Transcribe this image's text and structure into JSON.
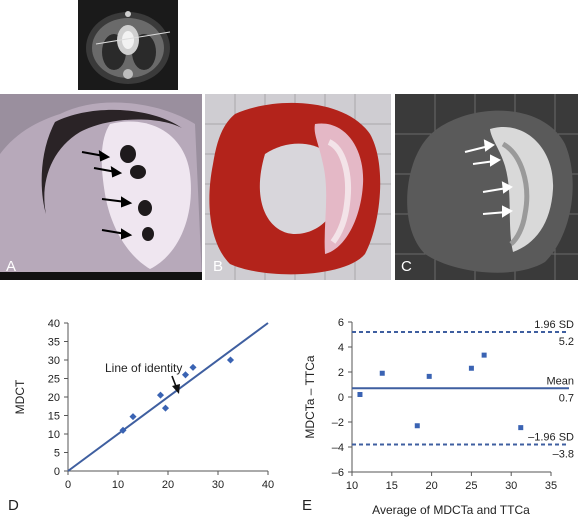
{
  "panels": {
    "A": "A",
    "B": "B",
    "C": "C",
    "D": "D",
    "E": "E"
  },
  "chart_data": [
    {
      "type": "scatter",
      "panel": "D",
      "xlabel": "",
      "ylabel": "MDCT",
      "xlim": [
        0,
        40
      ],
      "ylim": [
        0,
        40
      ],
      "xticks": [
        0,
        10,
        20,
        30,
        40
      ],
      "yticks": [
        0,
        5,
        10,
        15,
        20,
        25,
        30,
        35,
        40
      ],
      "points": [
        {
          "x": 11,
          "y": 11
        },
        {
          "x": 13,
          "y": 14.7
        },
        {
          "x": 18.5,
          "y": 20.5
        },
        {
          "x": 19.5,
          "y": 17
        },
        {
          "x": 23.5,
          "y": 26
        },
        {
          "x": 25,
          "y": 28
        },
        {
          "x": 32.5,
          "y": 30
        }
      ],
      "line": {
        "from": [
          0,
          0
        ],
        "to": [
          40,
          40
        ]
      },
      "annotation": "Line of identity",
      "colors": {
        "line": "#3f5fa0",
        "points": "#3a63b3"
      }
    },
    {
      "type": "scatter",
      "panel": "E",
      "xlabel": "Average of MDCTa and TTCa",
      "ylabel": "MDCTa – TTCa",
      "xlim": [
        10,
        35
      ],
      "ylim": [
        -6,
        6
      ],
      "xticks": [
        10,
        15,
        20,
        25,
        30,
        35
      ],
      "yticks": [
        -6,
        -4,
        -2,
        0,
        2,
        4,
        6
      ],
      "points": [
        {
          "x": 11,
          "y": 0.2
        },
        {
          "x": 13.8,
          "y": 1.9
        },
        {
          "x": 18.2,
          "y": -2.3
        },
        {
          "x": 19.7,
          "y": 1.65
        },
        {
          "x": 25,
          "y": 2.3
        },
        {
          "x": 26.6,
          "y": 3.35
        },
        {
          "x": 31.2,
          "y": -2.45
        }
      ],
      "reference_lines": [
        {
          "name": "1.96 SD",
          "value": 5.2,
          "value_label": "5.2",
          "style": "dashed"
        },
        {
          "name": "Mean",
          "value": 0.7,
          "value_label": "0.7",
          "style": "solid"
        },
        {
          "name": "–1.96 SD",
          "value": -3.8,
          "value_label": "–3.8",
          "style": "dashed"
        }
      ],
      "colors": {
        "line": "#3f5fa0",
        "points": "#3a63b3"
      }
    }
  ]
}
